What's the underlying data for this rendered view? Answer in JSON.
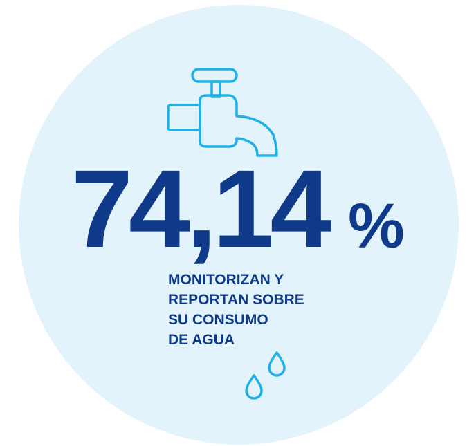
{
  "stat": {
    "value": "74,14",
    "unit": "%"
  },
  "caption": [
    "MONITORIZAN Y",
    "REPORTAN SOBRE",
    "SU CONSUMO",
    "DE AGUA"
  ]
}
